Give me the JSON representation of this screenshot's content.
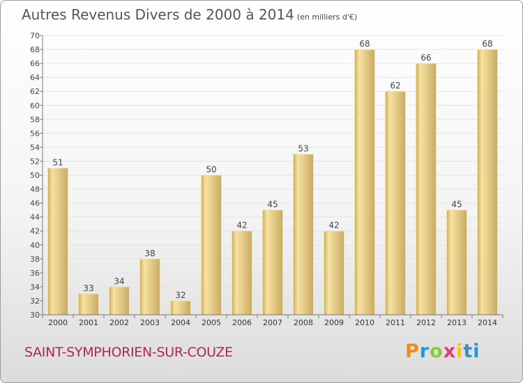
{
  "title": "Autres Revenus Divers de 2000 à 2014",
  "subtitle": "(en milliers d'€)",
  "commune": "SAINT-SYMPHORIEN-SUR-COUZE",
  "logo": {
    "text": "Proxiti"
  },
  "colors": {
    "bar_light": "#f5dc90",
    "bar_dark": "#c8aa62",
    "city": "#b0245a"
  },
  "chart_data": {
    "type": "bar",
    "categories": [
      "2000",
      "2001",
      "2002",
      "2003",
      "2004",
      "2005",
      "2006",
      "2007",
      "2008",
      "2009",
      "2010",
      "2011",
      "2012",
      "2013",
      "2014"
    ],
    "values": [
      51,
      33,
      34,
      38,
      32,
      50,
      42,
      45,
      53,
      42,
      68,
      62,
      66,
      45,
      68
    ],
    "ylim": [
      30,
      70
    ],
    "yticks": [
      30,
      32,
      34,
      36,
      38,
      40,
      42,
      44,
      46,
      48,
      50,
      52,
      54,
      56,
      58,
      60,
      62,
      64,
      66,
      68,
      70
    ],
    "grid": true
  }
}
